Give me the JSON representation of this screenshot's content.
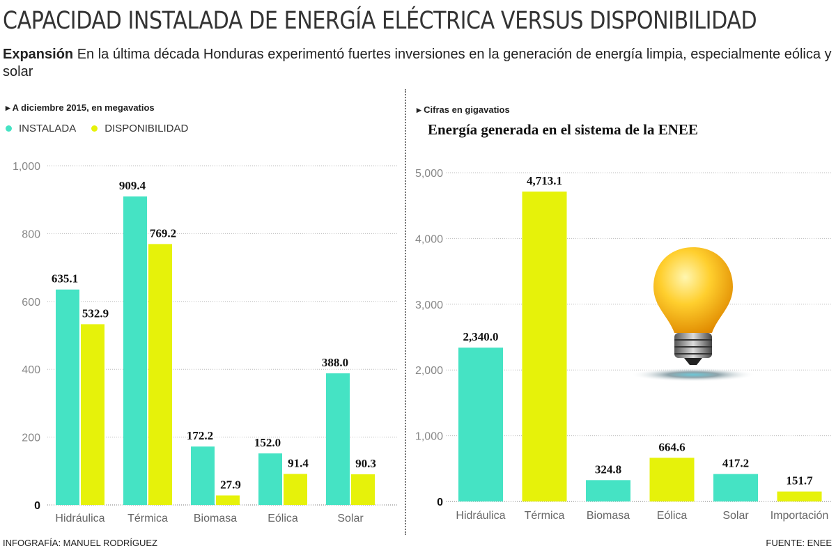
{
  "title": "CAPACIDAD INSTALADA DE ENERGÍA ELÉCTRICA VERSUS DISPONIBILIDAD",
  "intro": {
    "lead": "Expansión",
    "text": " En la última década Honduras experimentó fuertes inversiones en la generación de energía limpia, especialmente eólica y solar"
  },
  "footer": {
    "credit": "INFOGRAFÍA: MANUEL RODRÍGUEZ",
    "source": "FUENTE: ENEE"
  },
  "colors": {
    "instalada": "#45e3c4",
    "disponibilidad": "#e6f20a"
  },
  "chart_data": [
    {
      "type": "bar",
      "note": "A diciembre 2015, en megavatios",
      "categories": [
        "Hidráulica",
        "Térmica",
        "Biomasa",
        "Eólica",
        "Solar"
      ],
      "series": [
        {
          "name": "INSTALADA",
          "values": [
            635.1,
            909.4,
            172.2,
            152.0,
            388.0
          ],
          "labels": [
            "635.1",
            "909.4",
            "172.2",
            "152.0",
            "388.0"
          ]
        },
        {
          "name": "DISPONIBILIDAD",
          "values": [
            532.9,
            769.2,
            27.9,
            91.4,
            90.3
          ],
          "labels": [
            "532.9",
            "769.2",
            "27.9",
            "91.4",
            "90.3"
          ]
        }
      ],
      "yticks": [
        "0",
        "200",
        "400",
        "600",
        "800",
        "1,000"
      ],
      "ylim": [
        0,
        1000
      ],
      "grid": true,
      "legend": "top-left"
    },
    {
      "type": "bar",
      "note": "Cifras en gigavatios",
      "title": "Energía generada en el sistema de la ENEE",
      "categories": [
        "Hidráulica",
        "Térmica",
        "Biomasa",
        "Eólica",
        "Solar",
        "Importación"
      ],
      "values": [
        2340.0,
        4713.1,
        324.8,
        664.6,
        417.2,
        151.7
      ],
      "labels": [
        "2,340.0",
        "4,713.1",
        "324.8",
        "664.6",
        "417.2",
        "151.7"
      ],
      "bar_colors": [
        "#45e3c4",
        "#e6f20a",
        "#45e3c4",
        "#e6f20a",
        "#45e3c4",
        "#e6f20a"
      ],
      "yticks": [
        "0",
        "1,000",
        "2,000",
        "3,000",
        "4,000",
        "5,000"
      ],
      "ylim": [
        0,
        5000
      ],
      "grid": true
    }
  ]
}
